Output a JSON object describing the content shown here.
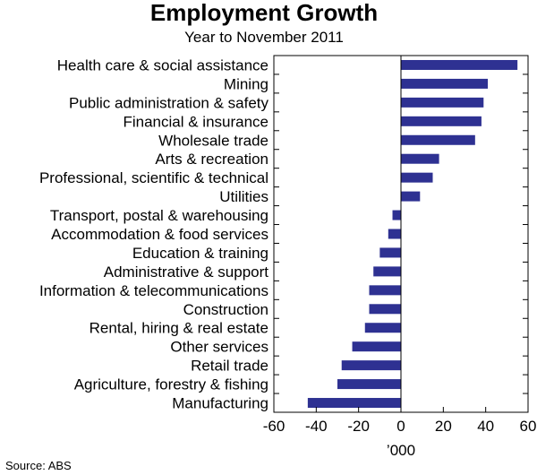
{
  "chart_data": {
    "type": "bar",
    "orientation": "horizontal",
    "title": "Employment Growth",
    "subtitle": "Year to November 2011",
    "xlabel": "’000",
    "ylabel": "",
    "xlim": [
      -60,
      60
    ],
    "xticks": [
      -60,
      -40,
      -20,
      0,
      20,
      40,
      60
    ],
    "grid": false,
    "legend": "none",
    "bar_color": "#2e3192",
    "categories": [
      "Health care & social assistance",
      "Mining",
      "Public administration & safety",
      "Financial & insurance",
      "Wholesale trade",
      "Arts & recreation",
      "Professional, scientific & technical",
      "Utilities",
      "Transport, postal & warehousing",
      "Accommodation & food services",
      "Education & training",
      "Administrative & support",
      "Information & telecommunications",
      "Construction",
      "Rental, hiring & real estate",
      "Other services",
      "Retail trade",
      "Agriculture, forestry & fishing",
      "Manufacturing"
    ],
    "values": [
      55,
      41,
      39,
      38,
      35,
      18,
      15,
      9,
      -4,
      -6,
      -10,
      -13,
      -15,
      -15,
      -17,
      -23,
      -28,
      -30,
      -44
    ],
    "source": "Source: ABS"
  }
}
